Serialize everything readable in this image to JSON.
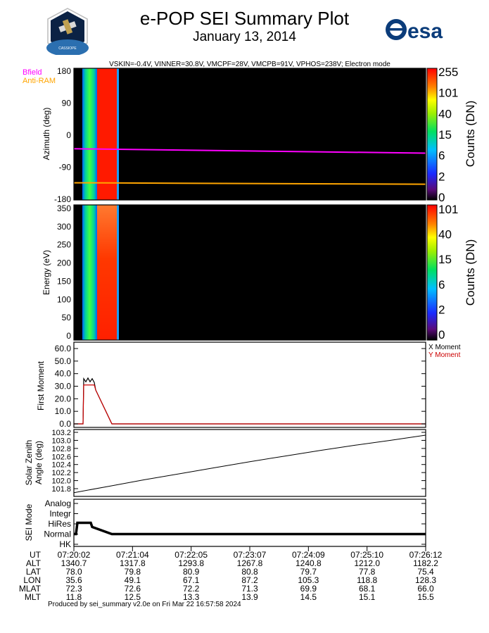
{
  "header": {
    "title": "e-POP SEI Summary Plot",
    "date": "January 13, 2014",
    "instrument_params": "VSKIN=-0.4V, VINNER=30.8V, VMCPF=28V, VMCPB=91V, VPHOS=238V; Electron mode",
    "logo_left_text": "CASSIOPE",
    "logo_right_text": "esa"
  },
  "legend_top": {
    "bfield": "Bfield",
    "bfield_color": "#ff00ff",
    "antiram": "Anti-RAM",
    "antiram_color": "#ffa500"
  },
  "footer": "Produced by sei_summary v2.0e on Fri Mar 22 16:57:58 2024",
  "chart_data": [
    {
      "type": "heatmap",
      "ylabel": "Azimuth (deg)",
      "yticks": [
        "180",
        "90",
        "0",
        "-90",
        "-180"
      ],
      "ylim": [
        -180,
        180
      ],
      "colorbar_label": "Counts (DN)",
      "colorbar_ticks": [
        "255",
        "101",
        "40",
        "15",
        "6",
        "2",
        "0"
      ],
      "lines": [
        {
          "name": "Bfield",
          "color": "#ff00ff",
          "x": [
            0,
            1
          ],
          "y": [
            -40,
            -52
          ]
        },
        {
          "name": "Anti-RAM",
          "color": "#ffa500",
          "x": [
            0,
            1
          ],
          "y": [
            -133,
            -137
          ]
        }
      ]
    },
    {
      "type": "heatmap",
      "ylabel": "Energy (eV)",
      "yticks": [
        "350",
        "300",
        "250",
        "200",
        "150",
        "100",
        "50",
        "0"
      ],
      "ylim": [
        0,
        350
      ],
      "colorbar_label": "Counts (DN)",
      "colorbar_ticks": [
        "101",
        "40",
        "15",
        "6",
        "2",
        "0"
      ]
    },
    {
      "type": "line",
      "ylabel": "First Moment",
      "yticks": [
        "60.0",
        "50.0",
        "40.0",
        "30.0",
        "20.0",
        "10.0",
        "0.0"
      ],
      "ylim": [
        0,
        65
      ],
      "legend": [
        "X Moment",
        "Y Moment"
      ],
      "series": [
        {
          "name": "X Moment",
          "color": "#000000",
          "x": [
            0,
            0.026,
            0.028,
            0.034,
            0.04,
            0.046,
            0.052,
            0.058,
            0.062,
            0.108,
            1.0
          ],
          "y": [
            0,
            0,
            36,
            33.5,
            36.5,
            33.5,
            36,
            33,
            27,
            0,
            0
          ]
        },
        {
          "name": "Y Moment",
          "color": "#cc0000",
          "x": [
            0,
            0.026,
            0.028,
            0.058,
            0.062,
            0.108,
            1.0
          ],
          "y": [
            0,
            0,
            31,
            31,
            27,
            0,
            0
          ]
        }
      ]
    },
    {
      "type": "line",
      "ylabel": "Solar Zenith Angle (deg)",
      "yticks": [
        "103.2",
        "103.0",
        "102.8",
        "102.6",
        "102.4",
        "102.2",
        "102.0",
        "101.8"
      ],
      "ylim": [
        101.68,
        103.2
      ],
      "series": [
        {
          "name": "SZA",
          "color": "#000000",
          "x": [
            0,
            0.1,
            0.2,
            0.3,
            0.4,
            0.5,
            0.6,
            0.7,
            0.8,
            0.9,
            1.0
          ],
          "y": [
            101.7,
            101.86,
            102.02,
            102.17,
            102.32,
            102.47,
            102.61,
            102.75,
            102.88,
            103.0,
            103.13
          ]
        }
      ]
    },
    {
      "type": "line",
      "ylabel": "SEI Mode",
      "ycats": [
        "Analog",
        "Integr",
        "HiRes",
        "Normal",
        "HK"
      ],
      "series": [
        {
          "name": "Mode",
          "color": "#000000",
          "x": [
            0,
            0.006,
            0.01,
            0.048,
            0.052,
            0.108,
            1.0
          ],
          "y": [
            1,
            1,
            2.1,
            2.1,
            1.7,
            1,
            1
          ]
        }
      ]
    }
  ],
  "time_table": {
    "labels": [
      "UT",
      "ALT",
      "LAT",
      "LON",
      "MLAT",
      "MLT"
    ],
    "columns": [
      [
        "07:20:02",
        "1340.7",
        "78.0",
        "35.6",
        "72.3",
        "11.8"
      ],
      [
        "07:21:04",
        "1317.8",
        "79.8",
        "49.1",
        "72.6",
        "12.5"
      ],
      [
        "07:22:05",
        "1293.8",
        "80.9",
        "67.1",
        "72.2",
        "13.3"
      ],
      [
        "07:23:07",
        "1267.8",
        "80.8",
        "87.2",
        "71.3",
        "13.9"
      ],
      [
        "07:24:09",
        "1240.8",
        "79.7",
        "105.3",
        "69.9",
        "14.5"
      ],
      [
        "07:25:10",
        "1212.0",
        "77.8",
        "118.8",
        "68.1",
        "15.1"
      ],
      [
        "07:26:12",
        "1182.2",
        "75.4",
        "128.3",
        "66.0",
        "15.5"
      ]
    ]
  }
}
